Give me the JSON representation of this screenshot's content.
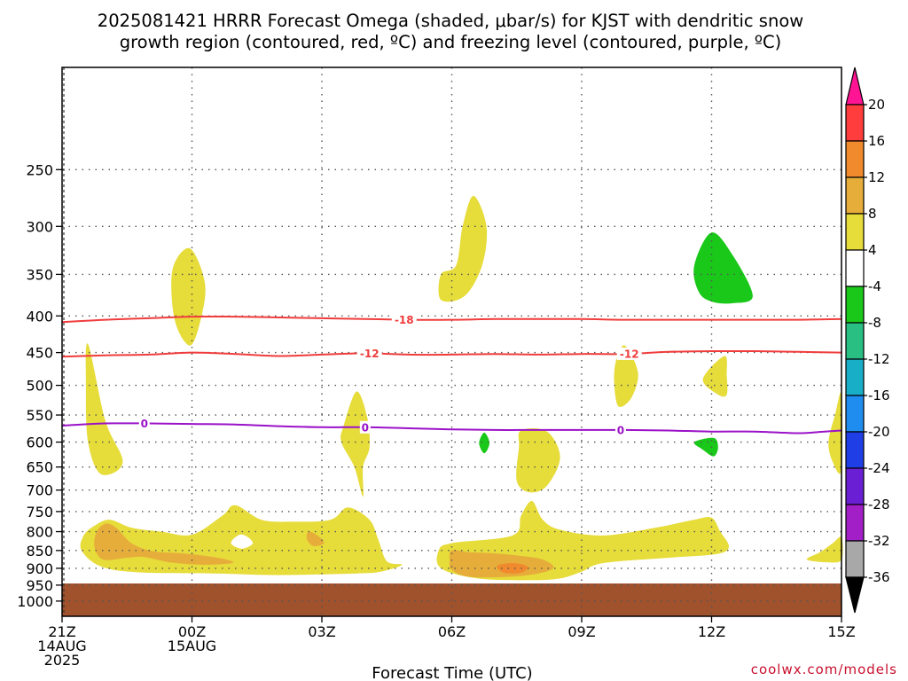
{
  "title": {
    "line1": "2025081421 HRRR Forecast Omega (shaded, μbar/s) for KJST with dendritic snow",
    "line2": "growth region (contoured, red, ºC) and freezing level (contoured, purple, ºC)"
  },
  "credit": "coolwx.com/models",
  "chart_data": {
    "type": "contour",
    "xlabel": "Forecast Time (UTC)",
    "ylabel": "",
    "x_ticks": [
      {
        "hour": 0,
        "lines": [
          "21Z",
          "14AUG",
          "2025"
        ]
      },
      {
        "hour": 3,
        "lines": [
          "00Z",
          "15AUG"
        ]
      },
      {
        "hour": 6,
        "lines": [
          "03Z"
        ]
      },
      {
        "hour": 9,
        "lines": [
          "06Z"
        ]
      },
      {
        "hour": 12,
        "lines": [
          "09Z"
        ]
      },
      {
        "hour": 15,
        "lines": [
          "12Z"
        ]
      },
      {
        "hour": 18,
        "lines": [
          "15Z"
        ]
      }
    ],
    "xlim": [
      0,
      18
    ],
    "y_ticks": [
      250,
      300,
      350,
      400,
      450,
      500,
      550,
      600,
      650,
      700,
      750,
      800,
      850,
      900,
      950,
      1000
    ],
    "ylim": [
      1050,
      180
    ],
    "y_scale": "log",
    "grid": true,
    "ground_level_hpa": 945,
    "ground_color": "#a0522d",
    "colorbar": {
      "labels": [
        "20",
        "16",
        "12",
        "8",
        "4",
        "-4",
        "-8",
        "-12",
        "-16",
        "-20",
        "-24",
        "-28",
        "-32",
        "-36"
      ],
      "colors": [
        "#ff1493",
        "#ff3d3d",
        "#f08a2c",
        "#e6ad3a",
        "#e6dc3a",
        "#ffffff",
        "#19c819",
        "#2abf82",
        "#19aec8",
        "#1f8cf0",
        "#1f3ee6",
        "#6a1fd4",
        "#a21fc8",
        "#a8a8a8",
        "#000000"
      ]
    },
    "contours": [
      {
        "name": "-18",
        "color": "#f03c3c",
        "label_hours": [
          7.9
        ],
        "points": [
          [
            0,
            408
          ],
          [
            1,
            405
          ],
          [
            2,
            403
          ],
          [
            3,
            401
          ],
          [
            4,
            401
          ],
          [
            5,
            402
          ],
          [
            6,
            403
          ],
          [
            7,
            404
          ],
          [
            8,
            405
          ],
          [
            9,
            405
          ],
          [
            10,
            404
          ],
          [
            11,
            404
          ],
          [
            12,
            404
          ],
          [
            13,
            405
          ],
          [
            14,
            405
          ],
          [
            15,
            405
          ],
          [
            16,
            405
          ],
          [
            17,
            405
          ],
          [
            18,
            404
          ]
        ]
      },
      {
        "name": "-12",
        "color": "#f03c3c",
        "label_hours": [
          7.1,
          13.1
        ],
        "points": [
          [
            0,
            456
          ],
          [
            1,
            454
          ],
          [
            2,
            453
          ],
          [
            3,
            450
          ],
          [
            4,
            452
          ],
          [
            5,
            455
          ],
          [
            6,
            453
          ],
          [
            7,
            451
          ],
          [
            8,
            453
          ],
          [
            9,
            453
          ],
          [
            10,
            452
          ],
          [
            11,
            453
          ],
          [
            12,
            452
          ],
          [
            13,
            452
          ],
          [
            14,
            449
          ],
          [
            15,
            448
          ],
          [
            16,
            448
          ],
          [
            17,
            449
          ],
          [
            18,
            450
          ]
        ]
      },
      {
        "name": "0",
        "color": "#9b12c8",
        "label_hours": [
          1.9,
          7.0,
          12.9
        ],
        "points": [
          [
            0,
            569
          ],
          [
            1,
            565
          ],
          [
            2,
            565
          ],
          [
            3,
            566
          ],
          [
            4,
            567
          ],
          [
            5,
            570
          ],
          [
            6,
            572
          ],
          [
            7,
            572
          ],
          [
            8,
            574
          ],
          [
            9,
            576
          ],
          [
            10,
            577
          ],
          [
            11,
            577
          ],
          [
            12,
            577
          ],
          [
            13,
            577
          ],
          [
            14,
            578
          ],
          [
            15,
            580
          ],
          [
            16,
            580
          ],
          [
            17,
            583
          ],
          [
            17.6,
            580
          ],
          [
            18,
            578
          ]
        ]
      }
    ],
    "omega_regions": [
      {
        "level": "4 to 8",
        "color": "#e6dc3a",
        "points": [
          [
            0.6,
            438
          ],
          [
            1.0,
            560
          ],
          [
            1.4,
            640
          ],
          [
            0.9,
            665
          ],
          [
            0.6,
            600
          ],
          [
            0.55,
            500
          ]
        ]
      },
      {
        "level": "4 to 8",
        "color": "#e6dc3a",
        "points": [
          [
            2.95,
            322
          ],
          [
            3.3,
            360
          ],
          [
            3.2,
            405
          ],
          [
            2.95,
            440
          ],
          [
            2.6,
            405
          ],
          [
            2.55,
            345
          ]
        ]
      },
      {
        "level": "4 to 8",
        "color": "#e6dc3a",
        "points": [
          [
            9.5,
            272
          ],
          [
            9.8,
            300
          ],
          [
            9.7,
            340
          ],
          [
            9.3,
            375
          ],
          [
            8.75,
            380
          ],
          [
            8.75,
            350
          ],
          [
            9.1,
            340
          ],
          [
            9.25,
            300
          ]
        ]
      },
      {
        "level": "4 to 8",
        "color": "#e6dc3a",
        "points": [
          [
            13.0,
            440
          ],
          [
            13.3,
            480
          ],
          [
            13.15,
            520
          ],
          [
            12.85,
            535
          ],
          [
            12.75,
            495
          ],
          [
            12.8,
            460
          ]
        ]
      },
      {
        "level": "4 to 8",
        "color": "#e6dc3a",
        "points": [
          [
            15.3,
            455
          ],
          [
            15.35,
            485
          ],
          [
            15.35,
            515
          ],
          [
            15.15,
            515
          ],
          [
            14.8,
            490
          ]
        ]
      },
      {
        "level": "4 to 8",
        "color": "#e6dc3a",
        "points": [
          [
            18,
            515
          ],
          [
            18,
            655
          ],
          [
            17.8,
            640
          ],
          [
            17.7,
            600
          ],
          [
            17.85,
            550
          ]
        ]
      },
      {
        "level": "4 to 8",
        "color": "#e6dc3a",
        "points": [
          [
            6.8,
            510
          ],
          [
            7.05,
            555
          ],
          [
            7.1,
            610
          ],
          [
            6.95,
            650
          ],
          [
            6.95,
            715
          ],
          [
            6.75,
            650
          ],
          [
            6.45,
            600
          ],
          [
            6.5,
            570
          ]
        ]
      },
      {
        "level": "4 to 8",
        "color": "#e6dc3a",
        "points": [
          [
            10.6,
            578
          ],
          [
            11.2,
            580
          ],
          [
            11.5,
            630
          ],
          [
            11.2,
            690
          ],
          [
            10.8,
            705
          ],
          [
            10.5,
            680
          ],
          [
            10.55,
            610
          ]
        ]
      },
      {
        "level": "4 to 8",
        "color": "#e6dc3a",
        "points": [
          [
            1.1,
            770
          ],
          [
            1.6,
            790
          ],
          [
            2.3,
            800
          ],
          [
            3.0,
            808
          ],
          [
            3.7,
            760
          ],
          [
            4.0,
            735
          ],
          [
            4.6,
            770
          ],
          [
            5.3,
            775
          ],
          [
            6.2,
            770
          ],
          [
            6.6,
            740
          ],
          [
            7.1,
            770
          ],
          [
            7.3,
            820
          ],
          [
            7.5,
            880
          ],
          [
            7.85,
            890
          ],
          [
            7.35,
            910
          ],
          [
            6.8,
            915
          ],
          [
            5.0,
            920
          ],
          [
            3.5,
            915
          ],
          [
            1.8,
            912
          ],
          [
            0.9,
            895
          ],
          [
            0.45,
            850
          ],
          [
            0.5,
            810
          ],
          [
            0.75,
            785
          ]
        ]
      },
      {
        "level": "4 to 8",
        "color": "#e6dc3a",
        "points": [
          [
            10.85,
            725
          ],
          [
            11.1,
            770
          ],
          [
            11.5,
            795
          ],
          [
            12.5,
            810
          ],
          [
            13.7,
            790
          ],
          [
            14.6,
            770
          ],
          [
            15.0,
            765
          ],
          [
            15.2,
            800
          ],
          [
            15.4,
            840
          ],
          [
            15.1,
            860
          ],
          [
            14.0,
            870
          ],
          [
            12.5,
            885
          ],
          [
            12.0,
            910
          ],
          [
            11.5,
            930
          ],
          [
            10.8,
            935
          ],
          [
            9.6,
            930
          ],
          [
            8.75,
            900
          ],
          [
            8.7,
            850
          ],
          [
            9.0,
            830
          ],
          [
            10.4,
            810
          ],
          [
            10.6,
            760
          ]
        ]
      },
      {
        "level": "4 to 8",
        "color": "#e6dc3a",
        "points": [
          [
            18,
            815
          ],
          [
            18,
            875
          ],
          [
            17.7,
            883
          ],
          [
            17.2,
            875
          ],
          [
            17.5,
            855
          ],
          [
            17.8,
            830
          ]
        ]
      },
      {
        "level": "8 to 12",
        "color": "#e6ad3a",
        "points": [
          [
            1.0,
            780
          ],
          [
            1.25,
            790
          ],
          [
            1.6,
            830
          ],
          [
            2.1,
            852
          ],
          [
            2.8,
            858
          ],
          [
            3.6,
            870
          ],
          [
            3.95,
            884
          ],
          [
            3.3,
            890
          ],
          [
            2.5,
            883
          ],
          [
            1.9,
            868
          ],
          [
            1.5,
            870
          ],
          [
            0.95,
            875
          ],
          [
            0.75,
            840
          ],
          [
            0.8,
            800
          ]
        ]
      },
      {
        "level": "8 to 12",
        "color": "#e6ad3a",
        "points": [
          [
            9.0,
            850
          ],
          [
            9.4,
            855
          ],
          [
            10.0,
            858
          ],
          [
            10.6,
            865
          ],
          [
            11.1,
            875
          ],
          [
            11.35,
            898
          ],
          [
            11.0,
            915
          ],
          [
            10.3,
            925
          ],
          [
            9.4,
            925
          ],
          [
            9.0,
            905
          ],
          [
            8.95,
            880
          ]
        ]
      },
      {
        "level": "8 to 12",
        "color": "#e6ad3a",
        "points": [
          [
            5.7,
            800
          ],
          [
            5.9,
            810
          ],
          [
            6.05,
            830
          ],
          [
            5.8,
            838
          ],
          [
            5.65,
            818
          ]
        ]
      },
      {
        "level": "12 to 16",
        "color": "#f08a2c",
        "points": [
          [
            10.05,
            893
          ],
          [
            10.4,
            885
          ],
          [
            10.75,
            895
          ],
          [
            10.6,
            913
          ],
          [
            10.2,
            913
          ]
        ]
      },
      {
        "level": "0",
        "color": "#ffffff",
        "points": [
          [
            3.9,
            830
          ],
          [
            4.1,
            808
          ],
          [
            4.3,
            815
          ],
          [
            4.4,
            832
          ],
          [
            4.15,
            845
          ]
        ]
      },
      {
        "level": "-4 to -8",
        "color": "#19c819",
        "points": [
          [
            15.0,
            306
          ],
          [
            15.5,
            330
          ],
          [
            15.95,
            375
          ],
          [
            15.5,
            384
          ],
          [
            15.0,
            382
          ],
          [
            14.7,
            370
          ],
          [
            14.6,
            340
          ]
        ]
      },
      {
        "level": "-4 to -8",
        "color": "#19c819",
        "points": [
          [
            14.6,
            600
          ],
          [
            15.05,
            592
          ],
          [
            15.15,
            610
          ],
          [
            15.05,
            628
          ],
          [
            14.8,
            615
          ]
        ]
      },
      {
        "level": "-4 to -8",
        "color": "#19c819",
        "points": [
          [
            9.75,
            582
          ],
          [
            9.87,
            602
          ],
          [
            9.75,
            622
          ],
          [
            9.63,
            602
          ]
        ]
      }
    ]
  }
}
